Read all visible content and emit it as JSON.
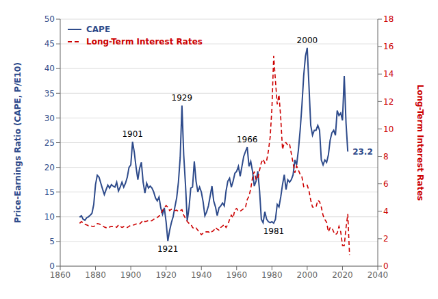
{
  "chart_data": {
    "type": "line",
    "x": [
      1871,
      1872,
      1873,
      1874,
      1875,
      1876,
      1877,
      1878,
      1879,
      1880,
      1881,
      1882,
      1883,
      1884,
      1885,
      1886,
      1887,
      1888,
      1889,
      1890,
      1891,
      1892,
      1893,
      1894,
      1895,
      1896,
      1897,
      1898,
      1899,
      1900,
      1901,
      1902,
      1903,
      1904,
      1905,
      1906,
      1907,
      1908,
      1909,
      1910,
      1911,
      1912,
      1913,
      1914,
      1915,
      1916,
      1917,
      1918,
      1919,
      1920,
      1921,
      1922,
      1923,
      1924,
      1925,
      1926,
      1927,
      1928,
      1929,
      1930,
      1931,
      1932,
      1933,
      1934,
      1935,
      1936,
      1937,
      1938,
      1939,
      1940,
      1941,
      1942,
      1943,
      1944,
      1945,
      1946,
      1947,
      1948,
      1949,
      1950,
      1951,
      1952,
      1953,
      1954,
      1955,
      1956,
      1957,
      1958,
      1959,
      1960,
      1961,
      1962,
      1963,
      1964,
      1965,
      1966,
      1967,
      1968,
      1969,
      1970,
      1971,
      1972,
      1973,
      1974,
      1975,
      1976,
      1977,
      1978,
      1979,
      1980,
      1981,
      1982,
      1983,
      1984,
      1985,
      1986,
      1987,
      1988,
      1989,
      1990,
      1991,
      1992,
      1993,
      1994,
      1995,
      1996,
      1997,
      1998,
      1999,
      2000,
      2001,
      2002,
      2003,
      2004,
      2005,
      2006,
      2007,
      2008,
      2009,
      2010,
      2011,
      2012,
      2013,
      2014,
      2015,
      2016,
      2017,
      2018,
      2019,
      2020,
      2021,
      2022,
      2023,
      2024
    ],
    "series": [
      {
        "name": "CAPE",
        "color": "#2E4B8B",
        "line_style": "solid",
        "values": [
          9.9,
          10.2,
          9.5,
          9.3,
          9.8,
          10.0,
          10.3,
          10.7,
          12.5,
          16.5,
          18.4,
          18.0,
          16.8,
          15.6,
          14.5,
          15.5,
          16.4,
          15.8,
          16.5,
          16.2,
          16.0,
          17.0,
          15.2,
          16.0,
          17.0,
          16.0,
          16.8,
          18.0,
          20.0,
          20.5,
          25.2,
          23.0,
          20.0,
          17.5,
          19.8,
          21.0,
          17.0,
          14.8,
          16.8,
          15.8,
          16.2,
          15.8,
          15.0,
          13.8,
          13.2,
          14.0,
          11.8,
          10.5,
          11.8,
          9.0,
          5.1,
          7.2,
          8.8,
          10.0,
          12.0,
          13.8,
          17.0,
          22.0,
          32.5,
          22.5,
          16.5,
          9.2,
          11.8,
          15.8,
          16.0,
          21.2,
          17.2,
          15.0,
          16.0,
          15.0,
          13.0,
          10.2,
          11.0,
          12.2,
          14.2,
          16.2,
          13.2,
          12.0,
          10.2,
          11.8,
          12.2,
          12.8,
          12.2,
          15.2,
          17.2,
          17.8,
          16.0,
          17.2,
          18.8,
          19.2,
          20.2,
          18.2,
          20.2,
          22.2,
          23.2,
          24.1,
          20.2,
          21.2,
          19.2,
          16.2,
          17.2,
          19.2,
          15.2,
          9.5,
          8.8,
          11.0,
          9.5,
          9.0,
          8.8,
          9.0,
          8.7,
          9.5,
          12.5,
          12.0,
          14.0,
          16.5,
          18.5,
          15.5,
          17.5,
          17.0,
          17.5,
          18.5,
          21.5,
          20.5,
          23.5,
          27.5,
          32.5,
          38.5,
          42.5,
          44.2,
          36.5,
          28.5,
          26.5,
          27.5,
          27.5,
          28.5,
          27.5,
          21.5,
          20.5,
          21.5,
          21.0,
          22.5,
          25.5,
          27.0,
          27.5,
          26.5,
          31.5,
          30.5,
          31.0,
          29.5,
          38.5,
          29.0,
          23.2,
          null
        ]
      },
      {
        "name": "Long-Term Interest Rates",
        "color": "#CC0000",
        "line_style": "dashed",
        "axis": "y2",
        "values": [
          3.12,
          3.25,
          3.15,
          3.05,
          3.0,
          2.95,
          2.98,
          2.9,
          2.88,
          3.0,
          3.1,
          3.08,
          3.02,
          2.95,
          2.85,
          2.8,
          2.88,
          2.85,
          2.9,
          2.88,
          2.9,
          2.83,
          3.0,
          2.9,
          2.82,
          2.88,
          2.8,
          2.82,
          2.9,
          2.98,
          2.98,
          3.02,
          3.08,
          3.05,
          3.08,
          3.2,
          3.35,
          3.25,
          3.28,
          3.32,
          3.3,
          3.32,
          3.42,
          3.48,
          3.55,
          3.65,
          3.8,
          4.05,
          4.25,
          4.42,
          4.3,
          4.05,
          4.15,
          4.05,
          4.05,
          4.08,
          3.98,
          4.05,
          4.12,
          3.72,
          3.48,
          3.25,
          3.12,
          3.08,
          2.82,
          2.72,
          2.78,
          2.62,
          2.45,
          2.3,
          2.4,
          2.5,
          2.5,
          2.5,
          2.4,
          2.52,
          2.6,
          2.82,
          2.7,
          2.62,
          2.82,
          2.92,
          3.05,
          2.82,
          3.02,
          3.4,
          3.72,
          3.52,
          4.12,
          4.2,
          4.0,
          4.0,
          4.1,
          4.2,
          4.28,
          4.85,
          5.1,
          5.65,
          6.45,
          6.9,
          6.3,
          6.4,
          7.0,
          7.55,
          7.8,
          7.5,
          7.68,
          8.4,
          9.4,
          11.5,
          15.32,
          13.5,
          11.8,
          12.5,
          10.8,
          8.5,
          9.0,
          9.0,
          8.8,
          8.9,
          8.2,
          7.5,
          6.8,
          7.3,
          7.0,
          6.7,
          6.5,
          5.8,
          5.9,
          5.9,
          5.5,
          4.8,
          4.3,
          4.3,
          4.3,
          4.8,
          4.7,
          4.3,
          3.7,
          3.4,
          3.2,
          2.5,
          2.8,
          2.8,
          2.5,
          2.3,
          2.4,
          2.9,
          2.5,
          1.5,
          1.5,
          2.8,
          3.8,
          0.8
        ]
      }
    ],
    "ylabel": "Price-Earnings Ratio (CAPE, P/E10)",
    "y2label": "Long-Term Interest Rates",
    "xlim": [
      1860,
      2040
    ],
    "xticks": [
      1860,
      1880,
      1900,
      1920,
      1940,
      1960,
      1980,
      2000,
      2020,
      2040
    ],
    "ylim": [
      0,
      50
    ],
    "yticks": [
      0,
      5,
      10,
      15,
      20,
      25,
      30,
      35,
      40,
      45,
      50
    ],
    "y2lim": [
      0,
      18
    ],
    "y2ticks": [
      0,
      2,
      4,
      6,
      8,
      10,
      12,
      14,
      16,
      18
    ],
    "grid": true,
    "legend": "upper left",
    "annotations": [
      {
        "text": "1901",
        "x": 1901,
        "y": 25.2
      },
      {
        "text": "1921",
        "x": 1921,
        "y": 5.1
      },
      {
        "text": "1929",
        "x": 1929,
        "y": 32.5
      },
      {
        "text": "1966",
        "x": 1966,
        "y": 24.1
      },
      {
        "text": "1981",
        "x": 1981,
        "y": 8.7
      },
      {
        "text": "2000",
        "x": 2000,
        "y": 44.2
      },
      {
        "text": "23.2",
        "x": 2023,
        "y": 23.2
      }
    ]
  }
}
